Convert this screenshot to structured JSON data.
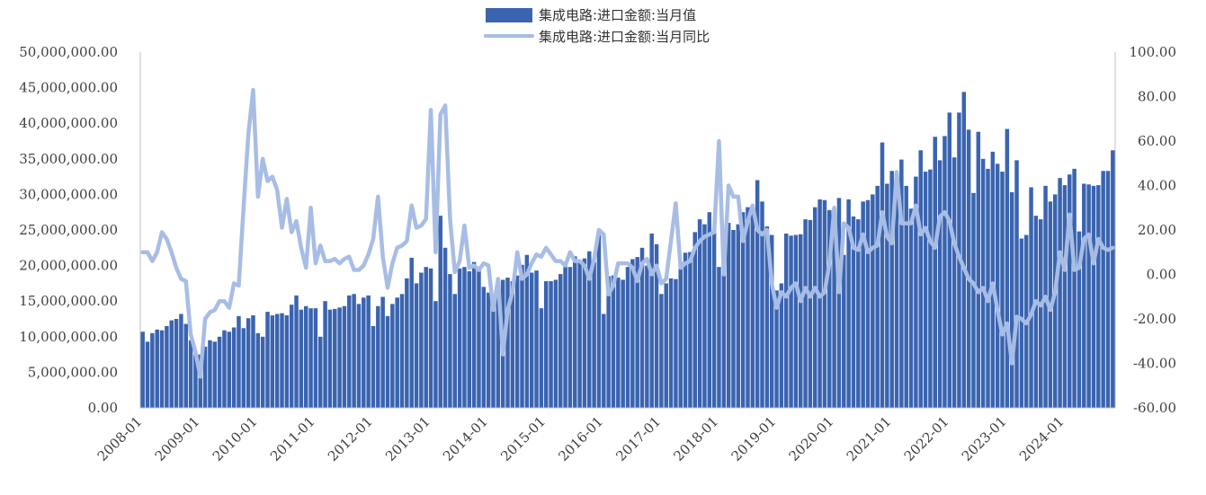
{
  "chart_data": {
    "type": "bar+line",
    "legend": {
      "bar_label": "集成电路:进口金额:当月值",
      "line_label": "集成电路:进口金额:当月同比",
      "placement": "top-center"
    },
    "colors": {
      "bar": "#3a64b0",
      "line": "#a8bde5"
    },
    "y_left": {
      "min": 0,
      "max": 50000000,
      "ticks": [
        "0.00",
        "5,000,000.00",
        "10,000,000.00",
        "15,000,000.00",
        "20,000,000.00",
        "25,000,000.00",
        "30,000,000.00",
        "35,000,000.00",
        "40,000,000.00",
        "45,000,000.00",
        "50,000,000.00"
      ]
    },
    "y_right": {
      "min": -60,
      "max": 100,
      "ticks": [
        "-60.00",
        "-40.00",
        "-20.00",
        "0.00",
        "20.00",
        "40.00",
        "60.00",
        "80.00",
        "100.00"
      ]
    },
    "x_labels": [
      "2008-01",
      "2009-01",
      "2010-01",
      "2011-01",
      "2012-01",
      "2013-01",
      "2014-01",
      "2015-01",
      "2016-01",
      "2017-01",
      "2018-01",
      "2019-01",
      "2020-01",
      "2021-01",
      "2022-01",
      "2023-01",
      "2024-01"
    ],
    "start_month": "2008-01",
    "bar_values": [
      10.7,
      9.3,
      10.5,
      11.0,
      10.9,
      11.5,
      12.3,
      12.5,
      13.2,
      11.8,
      9.5,
      7.5,
      7.5,
      8.6,
      9.5,
      9.3,
      10.0,
      10.9,
      10.7,
      11.3,
      12.9,
      11.2,
      12.6,
      13.0,
      10.5,
      10.0,
      13.5,
      13.0,
      13.2,
      13.3,
      13.0,
      14.5,
      15.8,
      13.8,
      14.3,
      14.0,
      14.0,
      10.0,
      15.0,
      13.8,
      13.9,
      14.1,
      14.3,
      15.8,
      16.0,
      14.6,
      15.5,
      15.8,
      11.5,
      14.3,
      15.6,
      12.9,
      14.6,
      15.5,
      16.0,
      18.2,
      21.1,
      17.5,
      19.0,
      19.8,
      19.6,
      15.0,
      27.0,
      22.5,
      18.8,
      16.0,
      19.6,
      19.8,
      19.2,
      20.5,
      19.5,
      17.0,
      16.2,
      15.2,
      17.0,
      18.0,
      18.3,
      17.8,
      18.6,
      20.1,
      21.5,
      19.0,
      19.3,
      14.0,
      17.8,
      17.8,
      18.0,
      18.8,
      20.5,
      19.8,
      21.3,
      20.6,
      21.0,
      22.0,
      20.5,
      24.3,
      13.2,
      18.5,
      18.6,
      18.3,
      18.0,
      19.8,
      20.9,
      21.2,
      22.5,
      20.0,
      24.5,
      23.0,
      16.0,
      17.5,
      18.2,
      18.1,
      20.5,
      21.8,
      21.9,
      24.7,
      26.5,
      25.8,
      27.5,
      25.2,
      19.8,
      24.5,
      26.0,
      25.0,
      25.8,
      27.5,
      28.2,
      27.6,
      32.0,
      29.0,
      25.5,
      24.3,
      16.5,
      17.5,
      24.5,
      24.2,
      24.3,
      24.4,
      26.5,
      26.4,
      28.2,
      29.3,
      29.2,
      27.8,
      28.0,
      29.5,
      21.5,
      29.3,
      26.9,
      26.5,
      29.0,
      29.2,
      30.0,
      31.2,
      37.3,
      31.5,
      33.3,
      33.0,
      34.9,
      31.2,
      28.0,
      32.5,
      36.2,
      33.2,
      33.5,
      38.1,
      34.8,
      38.2,
      41.5,
      35.2,
      41.5,
      44.4,
      39.1,
      30.2,
      38.8,
      35.0,
      33.6,
      36.0,
      34.3,
      33.2,
      39.2,
      30.3,
      34.8,
      23.8,
      24.3,
      31.0,
      27.0,
      26.5,
      31.2,
      29.0,
      30.0,
      32.3,
      31.3,
      32.8,
      33.6,
      24.8,
      31.5,
      31.4,
      31.2,
      31.3,
      33.3,
      33.3,
      36.2
    ],
    "line_values": [
      10,
      10,
      6,
      10,
      19,
      16,
      10,
      3,
      -2,
      -3,
      -27,
      -35,
      -46,
      -20,
      -17,
      -16,
      -12,
      -12,
      -15,
      -4,
      -5,
      30,
      63,
      83,
      35,
      52,
      42,
      44,
      38,
      21,
      34,
      19,
      24,
      12,
      3,
      30,
      5,
      13,
      6,
      6,
      7,
      5,
      7,
      8,
      2,
      2,
      4,
      9,
      16,
      35,
      8,
      -6,
      5,
      12,
      13,
      15,
      31,
      21,
      22,
      25,
      74,
      10,
      72,
      76,
      25,
      1,
      6,
      22,
      3,
      4,
      2,
      5,
      4,
      -16,
      -2,
      -36,
      -16,
      -8,
      10,
      -2,
      0,
      5,
      9,
      8,
      12,
      9,
      6,
      6,
      4,
      10,
      6,
      6,
      4,
      -2,
      7,
      20,
      18,
      -9,
      -5,
      5,
      5,
      5,
      3,
      -3,
      5,
      7,
      0,
      4,
      -4,
      -2,
      15,
      32,
      3,
      5,
      6,
      12,
      15,
      17,
      18,
      19,
      60,
      0,
      40,
      35,
      35,
      15,
      24,
      31,
      20,
      18,
      20,
      -4,
      -15,
      -8,
      -10,
      -6,
      -4,
      -12,
      -6,
      -10,
      -6,
      -10,
      -8,
      5,
      30,
      -8,
      23,
      21,
      12,
      11,
      18,
      10,
      12,
      13,
      28,
      17,
      14,
      46,
      23,
      23,
      23,
      31,
      18,
      21,
      15,
      12,
      26,
      28,
      24,
      14,
      8,
      3,
      -2,
      -4,
      -8,
      -6,
      -12,
      -4,
      -16,
      -27,
      -22,
      -40,
      -19,
      -20,
      -22,
      -18,
      -12,
      -14,
      -10,
      -16,
      -8,
      10,
      2,
      27,
      2,
      3,
      16,
      18,
      5,
      16,
      12,
      11,
      12
    ]
  }
}
